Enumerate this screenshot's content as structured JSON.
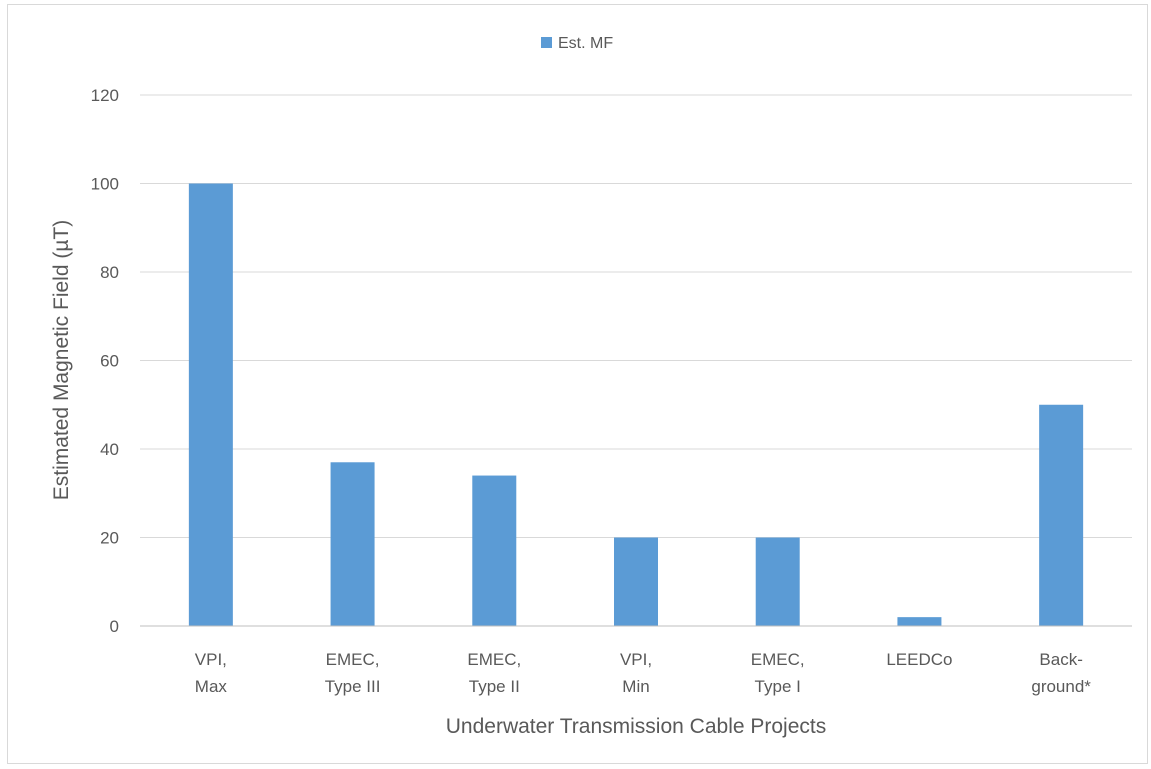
{
  "chart_data": {
    "type": "bar",
    "title": "",
    "categories": [
      [
        "VPI,",
        "Max"
      ],
      [
        "EMEC,",
        "Type III"
      ],
      [
        "EMEC,",
        "Type II"
      ],
      [
        "VPI,",
        "Min"
      ],
      [
        "EMEC,",
        "Type I"
      ],
      [
        "LEEDCo"
      ],
      [
        "Back-",
        "ground*"
      ]
    ],
    "series": [
      {
        "name": "Est. MF",
        "values": [
          100,
          37,
          34,
          20,
          20,
          2,
          50
        ]
      }
    ],
    "xlabel": "Underwater Transmission Cable Projects",
    "ylabel": "Estimated Magnetic Field (µT)",
    "ylim": [
      0,
      120
    ],
    "yticks": [
      0,
      20,
      40,
      60,
      80,
      100,
      120
    ],
    "grid": true,
    "legend_position": "top-center",
    "colors": {
      "bar": "#5b9bd5",
      "grid": "#d9d9d9",
      "axis": "#bfbfbf",
      "text": "#595959"
    }
  }
}
